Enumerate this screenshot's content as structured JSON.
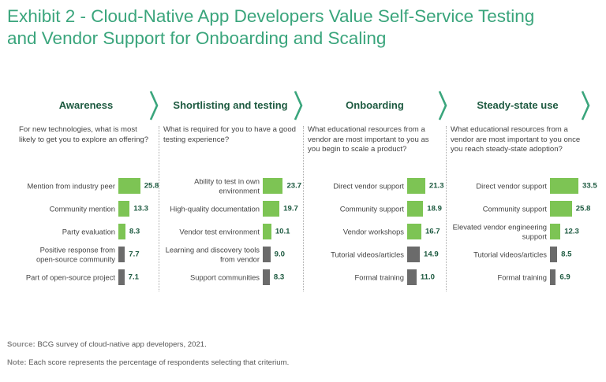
{
  "title_line1": "Exhibit 2 - Cloud-Native App Developers Value Self-Service Testing",
  "title_line2": "and Vendor Support for Onboarding and Scaling",
  "colors": {
    "green": "#7dc454",
    "gray": "#6b6b6b",
    "title": "#3aa57c",
    "dark": "#1d5a40"
  },
  "chart_data": [
    {
      "type": "bar",
      "title": "Awareness",
      "subtitle": "For new technologies, what is most likely to get you to explore an offering?",
      "categories": [
        "Mention from industry peer",
        "Community mention",
        "Party evaluation",
        "Positive response from open-source community",
        "Part of open-source project"
      ],
      "values": [
        25.8,
        13.3,
        8.3,
        7.7,
        7.1
      ],
      "highlight": [
        "green",
        "green",
        "green",
        "gray",
        "gray"
      ]
    },
    {
      "type": "bar",
      "title": "Shortlisting and testing",
      "subtitle": "What is required for you to have a good testing experience?",
      "categories": [
        "Ability to test in own environment",
        "High-quality documentation",
        "Vendor test environment",
        "Learning and discovery tools from vendor",
        "Support communities"
      ],
      "values": [
        23.7,
        19.7,
        10.1,
        9.0,
        8.3
      ],
      "highlight": [
        "green",
        "green",
        "green",
        "gray",
        "gray"
      ]
    },
    {
      "type": "bar",
      "title": "Onboarding",
      "subtitle": "What educational resources from a vendor are most important to you as you begin to scale a product?",
      "categories": [
        "Direct vendor support",
        "Community support",
        "Vendor workshops",
        "Tutorial videos/articles",
        "Formal training"
      ],
      "values": [
        21.3,
        18.9,
        16.7,
        14.9,
        11.0
      ],
      "highlight": [
        "green",
        "green",
        "green",
        "gray",
        "gray"
      ]
    },
    {
      "type": "bar",
      "title": "Steady-state use",
      "subtitle": "What educational resources from a vendor are most important to you once you reach steady-state adoption?",
      "categories": [
        "Direct vendor support",
        "Community support",
        "Elevated vendor engineering support",
        "Tutorial videos/articles",
        "Formal training"
      ],
      "values": [
        33.5,
        25.8,
        12.3,
        8.5,
        6.9
      ],
      "highlight": [
        "green",
        "green",
        "green",
        "gray",
        "gray"
      ]
    }
  ],
  "footer": {
    "source_label": "Source:",
    "source_text": " BCG survey of cloud-native app developers, 2021.",
    "note_label": "Note:",
    "note_text": " Each score represents the percentage of respondents selecting that criterium."
  }
}
